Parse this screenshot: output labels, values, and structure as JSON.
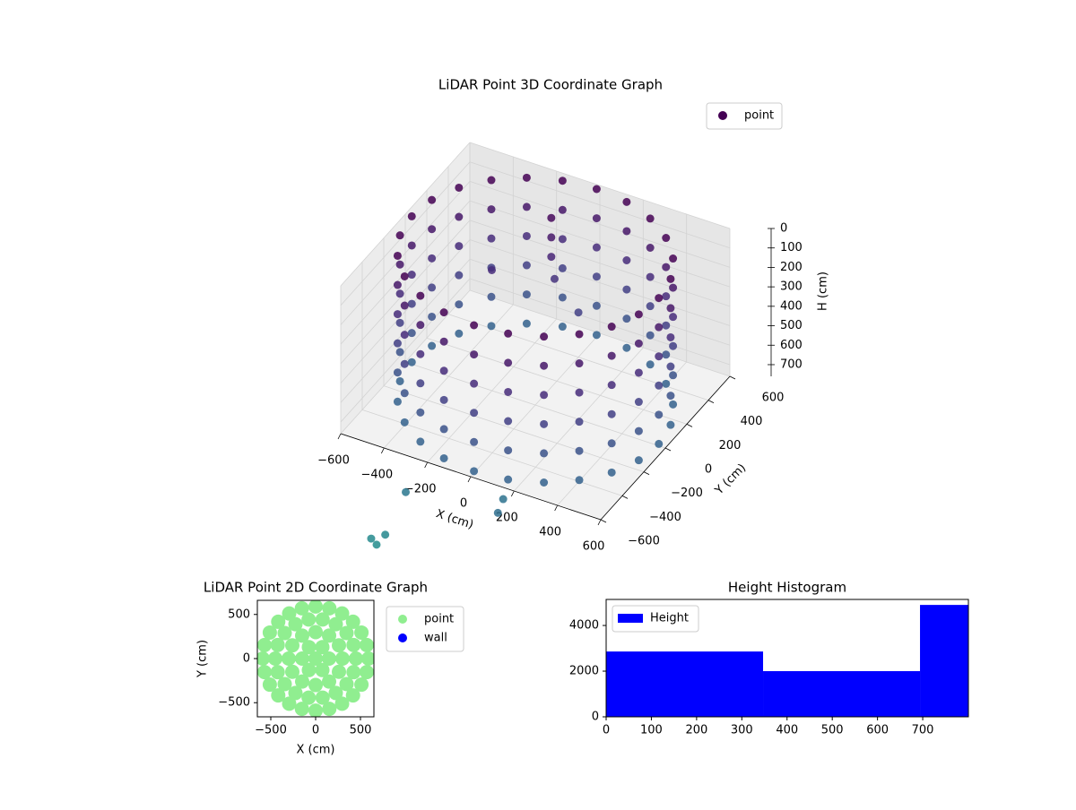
{
  "chart_data": [
    {
      "type": "scatter3d",
      "title": "LiDAR Point 3D Coordinate Graph",
      "xlabel": "X (cm)",
      "ylabel": "Y (cm)",
      "zlabel": "H (cm)",
      "xlim": [
        -600,
        600
      ],
      "ylim": [
        -600,
        600
      ],
      "zlim": [
        760,
        0
      ],
      "xticks": [
        {
          "value": -600,
          "label": "−600"
        },
        {
          "value": -400,
          "label": "−400"
        },
        {
          "value": -200,
          "label": "−200"
        },
        0,
        200,
        400,
        600
      ],
      "yticks": [
        {
          "value": -600,
          "label": "−600"
        },
        {
          "value": -400,
          "label": "−400"
        },
        {
          "value": -200,
          "label": "−200"
        },
        0,
        200,
        400,
        600
      ],
      "zticks": [
        0,
        100,
        200,
        300,
        400,
        500,
        600,
        700
      ],
      "colormap": "viridis",
      "clim": [
        0,
        2400
      ],
      "legend": "upper right",
      "grid": true,
      "series": [
        {
          "name": "point",
          "color": "#440154",
          "x": [
            570,
            551,
            494,
            403,
            285,
            148,
            0,
            -148,
            -285,
            -403,
            -494,
            -551,
            -570,
            -551,
            -494,
            -403,
            -285,
            -148,
            0,
            148,
            285,
            403,
            494,
            551,
            570,
            551,
            494,
            403,
            285,
            148,
            0,
            -148,
            -285,
            -403,
            -494,
            -551,
            -570,
            -551,
            -494,
            -403,
            -285,
            -148,
            0,
            148,
            285,
            403,
            494,
            551,
            570,
            551,
            494,
            403,
            285,
            148,
            0,
            -148,
            -285,
            -403,
            -494,
            -551,
            -570,
            -551,
            -494,
            -403,
            -285,
            -148,
            0,
            148,
            285,
            403,
            494,
            551,
            570,
            551,
            494,
            403,
            285,
            148,
            0,
            -148,
            -285,
            -403,
            -494,
            -551,
            -570,
            -551,
            -494,
            -403,
            -285,
            -148,
            0,
            148,
            285,
            403,
            494,
            551,
            570,
            551,
            494,
            403,
            285,
            148,
            0,
            -148,
            -285,
            -403,
            -494,
            -551,
            -570,
            -551,
            -494,
            -403,
            -285,
            -148,
            0,
            148,
            285,
            403,
            494,
            551,
            570,
            551,
            494,
            403,
            285,
            148,
            0,
            -148,
            -285,
            -403,
            -494,
            -551,
            -570,
            -551,
            -494,
            -403,
            -285,
            -148,
            0,
            148,
            285,
            403,
            494,
            551,
            -100,
            -100,
            -100,
            -80,
            50,
            -300,
            -300,
            100,
            150,
            -360,
            -380,
            -330
          ],
          "y": [
            0,
            148,
            285,
            403,
            494,
            551,
            570,
            551,
            494,
            403,
            285,
            148,
            0,
            -148,
            -285,
            -403,
            -494,
            -551,
            -570,
            -551,
            -494,
            -403,
            -285,
            -148,
            0,
            148,
            285,
            403,
            494,
            551,
            570,
            551,
            494,
            403,
            285,
            148,
            0,
            -148,
            -285,
            -403,
            -494,
            -551,
            -570,
            -551,
            -494,
            -403,
            -285,
            -148,
            0,
            148,
            285,
            403,
            494,
            551,
            570,
            551,
            494,
            403,
            285,
            148,
            0,
            -148,
            -285,
            -403,
            -494,
            -551,
            -570,
            -551,
            -494,
            -403,
            -285,
            -148,
            0,
            148,
            285,
            403,
            494,
            551,
            570,
            551,
            494,
            403,
            285,
            148,
            0,
            -148,
            -285,
            -403,
            -494,
            -551,
            -570,
            -551,
            -494,
            -403,
            -285,
            -148,
            0,
            148,
            285,
            403,
            494,
            551,
            570,
            551,
            494,
            403,
            285,
            148,
            0,
            -148,
            -285,
            -403,
            -494,
            -551,
            -570,
            -551,
            -494,
            -403,
            -285,
            -148,
            0,
            148,
            285,
            403,
            494,
            551,
            570,
            551,
            494,
            403,
            285,
            148,
            0,
            -148,
            -285,
            -403,
            -494,
            -551,
            -570,
            -551,
            -494,
            -403,
            -285,
            -148,
            350,
            350,
            350,
            340,
            300,
            200,
            -600,
            -500,
            -650,
            -750,
            -760,
            -730
          ],
          "z": [
            0,
            0,
            0,
            0,
            0,
            0,
            0,
            0,
            0,
            0,
            0,
            0,
            0,
            0,
            0,
            0,
            0,
            0,
            0,
            0,
            0,
            0,
            0,
            0,
            150,
            150,
            150,
            150,
            150,
            150,
            150,
            150,
            150,
            150,
            150,
            150,
            150,
            150,
            150,
            150,
            150,
            150,
            150,
            150,
            150,
            150,
            150,
            150,
            300,
            300,
            300,
            300,
            300,
            300,
            300,
            300,
            300,
            300,
            300,
            300,
            300,
            300,
            300,
            300,
            300,
            300,
            300,
            300,
            300,
            300,
            300,
            300,
            450,
            450,
            450,
            450,
            450,
            450,
            450,
            450,
            450,
            450,
            450,
            450,
            450,
            450,
            450,
            450,
            450,
            450,
            450,
            450,
            450,
            450,
            450,
            450,
            600,
            600,
            600,
            600,
            600,
            600,
            600,
            600,
            600,
            600,
            600,
            600,
            600,
            600,
            600,
            600,
            600,
            600,
            600,
            600,
            600,
            600,
            600,
            600,
            750,
            750,
            750,
            750,
            750,
            750,
            750,
            750,
            750,
            750,
            750,
            750,
            750,
            750,
            750,
            750,
            750,
            750,
            750,
            750,
            750,
            750,
            750,
            750,
            50,
            150,
            250,
            350,
            450,
            300,
            950,
            900,
            860,
            1150,
            1120,
            1100
          ]
        }
      ]
    },
    {
      "type": "scatter",
      "title": "LiDAR Point 2D Coordinate Graph",
      "xlabel": "X (cm)",
      "ylabel": "Y (cm)",
      "xlim": [
        -650,
        650
      ],
      "ylim": [
        -660,
        660
      ],
      "xticks": [
        {
          "value": -500,
          "label": "−500"
        },
        0,
        500
      ],
      "yticks": [
        {
          "value": -500,
          "label": "−500"
        },
        0,
        500
      ],
      "legend": "outside right",
      "series": [
        {
          "name": "point",
          "color": "#90ee90",
          "x": [
            0,
            150,
            75,
            -75,
            -150,
            -75,
            75,
            300,
            260,
            150,
            0,
            -150,
            -260,
            -300,
            -260,
            -150,
            0,
            150,
            260,
            450,
            423,
            345,
            225,
            78,
            -78,
            -225,
            -345,
            -423,
            -450,
            -423,
            -345,
            -225,
            -78,
            78,
            225,
            345,
            423,
            590,
            570,
            511,
            417,
            295,
            153,
            0,
            -153,
            -295,
            -417,
            -511,
            -570,
            -590,
            -570,
            -511,
            -417,
            -295,
            -153,
            0,
            153,
            295,
            417,
            511,
            570
          ],
          "y": [
            0,
            0,
            130,
            130,
            0,
            -130,
            -130,
            0,
            150,
            260,
            300,
            260,
            150,
            0,
            -150,
            -260,
            -300,
            -260,
            -150,
            0,
            154,
            289,
            390,
            443,
            443,
            390,
            289,
            154,
            0,
            -154,
            -289,
            -390,
            -443,
            -443,
            -390,
            -289,
            -154,
            0,
            153,
            295,
            417,
            511,
            570,
            590,
            570,
            511,
            417,
            295,
            153,
            0,
            -153,
            -295,
            -417,
            -511,
            -570,
            -590,
            -570,
            -511,
            -417,
            -295,
            -153
          ]
        },
        {
          "name": "wall",
          "color": "#0000ff",
          "x": [],
          "y": []
        }
      ]
    },
    {
      "type": "histogram",
      "title": "Height Histogram",
      "xlim": [
        0,
        801
      ],
      "ylim": [
        0,
        5140
      ],
      "xticks": [
        0,
        100,
        200,
        300,
        400,
        500,
        600,
        700
      ],
      "yticks": [
        0,
        2000,
        4000
      ],
      "legend": "upper left",
      "bins": [
        0,
        347,
        694,
        801
      ],
      "series": [
        {
          "name": "Height",
          "color": "#0000ff",
          "values": [
            2860,
            2000,
            4900
          ]
        }
      ]
    }
  ]
}
